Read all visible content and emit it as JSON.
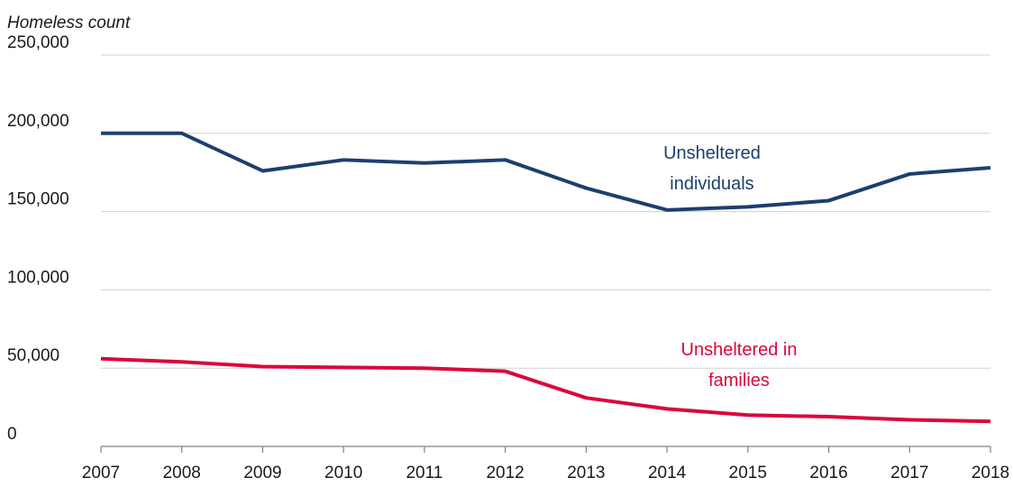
{
  "chart_data": {
    "type": "line",
    "y_label": "Homeless count",
    "categories": [
      "2007",
      "2008",
      "2009",
      "2010",
      "2011",
      "2012",
      "2013",
      "2014",
      "2015",
      "2016",
      "2017",
      "2018"
    ],
    "series": [
      {
        "name": "Unsheltered individuals",
        "color": "#1c3f6e",
        "values": [
          200000,
          200000,
          176000,
          183000,
          181000,
          183000,
          165000,
          151000,
          153000,
          157000,
          174000,
          178000
        ]
      },
      {
        "name": "Unsheltered in families",
        "color": "#d9073d",
        "values": [
          56000,
          54000,
          51000,
          50500,
          50000,
          48000,
          31000,
          24000,
          20000,
          19000,
          17000,
          16000
        ]
      }
    ],
    "ylim": [
      0,
      250000
    ],
    "yticks": [
      0,
      {
        "value": 50000,
        "label": "50,000"
      },
      {
        "value": 100000,
        "label": "100,000"
      },
      {
        "value": 150000,
        "label": "150,000"
      },
      {
        "value": 200000,
        "label": "200,000"
      },
      {
        "value": 250000,
        "label": "250,000"
      }
    ],
    "grid": true
  }
}
